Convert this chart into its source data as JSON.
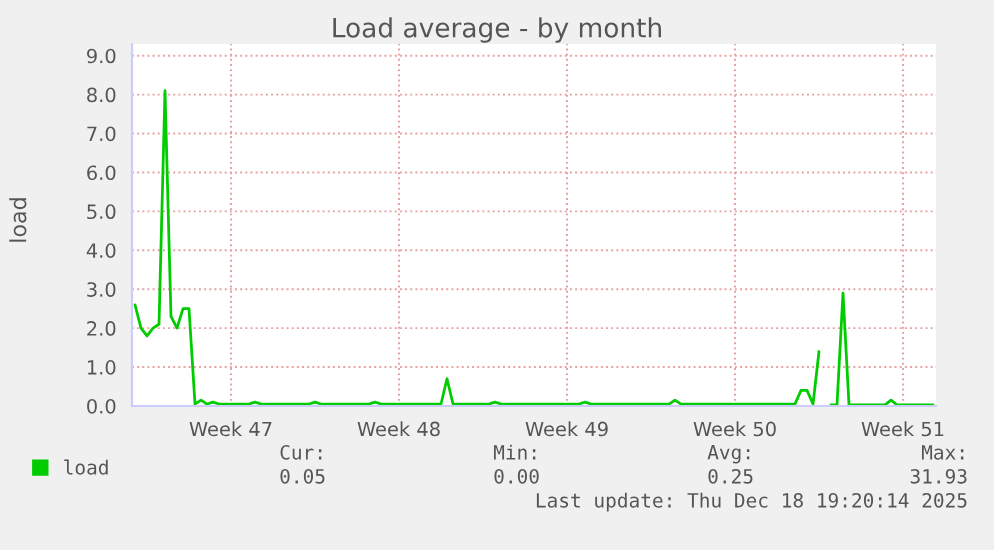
{
  "chart_data": {
    "type": "line",
    "title": "Load average - by month",
    "ylabel": "load",
    "categories": [
      null,
      null,
      null,
      null,
      null,
      null,
      null,
      null,
      null,
      null,
      null,
      null,
      null,
      null,
      null,
      null,
      "Week 47",
      null,
      null,
      null,
      null,
      null,
      null,
      null,
      null,
      null,
      null,
      null,
      null,
      null,
      null,
      null,
      null,
      null,
      null,
      null,
      null,
      null,
      null,
      null,
      null,
      null,
      null,
      null,
      "Week 48",
      null,
      null,
      null,
      null,
      null,
      null,
      null,
      null,
      null,
      null,
      null,
      null,
      null,
      null,
      null,
      null,
      null,
      null,
      null,
      null,
      null,
      null,
      null,
      null,
      null,
      null,
      null,
      "Week 49",
      null,
      null,
      null,
      null,
      null,
      null,
      null,
      null,
      null,
      null,
      null,
      null,
      null,
      null,
      null,
      null,
      null,
      null,
      null,
      null,
      null,
      null,
      null,
      null,
      null,
      null,
      null,
      "Week 50",
      null,
      null,
      null,
      null,
      null,
      null,
      null,
      null,
      null,
      null,
      null,
      null,
      null,
      null,
      null,
      null,
      null,
      null,
      null,
      null,
      null,
      null,
      null,
      null,
      null,
      null,
      null,
      "Week 51",
      null,
      null,
      null,
      null,
      null
    ],
    "series": [
      {
        "name": "load",
        "color": "#00cc00",
        "values": [
          2.6,
          2.0,
          1.8,
          2.0,
          2.1,
          8.1,
          2.3,
          2.0,
          2.5,
          2.5,
          0.05,
          0.15,
          0.05,
          0.1,
          0.05,
          0.05,
          0.05,
          0.05,
          0.05,
          0.05,
          0.1,
          0.05,
          0.05,
          0.05,
          0.05,
          0.05,
          0.05,
          0.05,
          0.05,
          0.05,
          0.1,
          0.05,
          0.05,
          0.05,
          0.05,
          0.05,
          0.05,
          0.05,
          0.05,
          0.05,
          0.1,
          0.05,
          0.05,
          0.05,
          0.05,
          0.05,
          0.05,
          0.05,
          0.05,
          0.05,
          0.05,
          0.05,
          0.7,
          0.05,
          0.05,
          0.05,
          0.05,
          0.05,
          0.05,
          0.05,
          0.1,
          0.05,
          0.05,
          0.05,
          0.05,
          0.05,
          0.05,
          0.05,
          0.05,
          0.05,
          0.05,
          0.05,
          0.05,
          0.05,
          0.05,
          0.1,
          0.05,
          0.05,
          0.05,
          0.05,
          0.05,
          0.05,
          0.05,
          0.05,
          0.05,
          0.05,
          0.05,
          0.05,
          0.05,
          0.05,
          0.15,
          0.05,
          0.05,
          0.05,
          0.05,
          0.05,
          0.05,
          0.05,
          0.05,
          0.05,
          0.05,
          0.05,
          0.05,
          0.05,
          0.05,
          0.05,
          0.05,
          0.05,
          0.05,
          0.05,
          0.05,
          0.4,
          0.4,
          0.05,
          1.4,
          null,
          0.03,
          0.03,
          2.9,
          0.03,
          0.03,
          0.03,
          0.03,
          0.03,
          0.03,
          0.03,
          0.15,
          0.03,
          0.03,
          0.03,
          0.03,
          0.03,
          0.03,
          0.03
        ]
      }
    ],
    "ylim": [
      0,
      9.3
    ],
    "yticks": [
      {
        "value": 0,
        "label": "0.0"
      },
      {
        "value": 1,
        "label": "1.0"
      },
      {
        "value": 2,
        "label": "2.0"
      },
      {
        "value": 3,
        "label": "3.0"
      },
      {
        "value": 4,
        "label": "4.0"
      },
      {
        "value": 5,
        "label": "5.0"
      },
      {
        "value": 6,
        "label": "6.0"
      },
      {
        "value": 7,
        "label": "7.0"
      },
      {
        "value": 8,
        "label": "8.0"
      },
      {
        "value": 9,
        "label": "9.0"
      }
    ],
    "grid": true,
    "legend": "bottom left",
    "annotations": [
      "Cur:",
      "Min:",
      "Avg:",
      "Max:",
      "0.05",
      "0.00",
      "0.25",
      "31.93",
      "Last update: Thu Dec 18 19:20:14 2025"
    ]
  }
}
